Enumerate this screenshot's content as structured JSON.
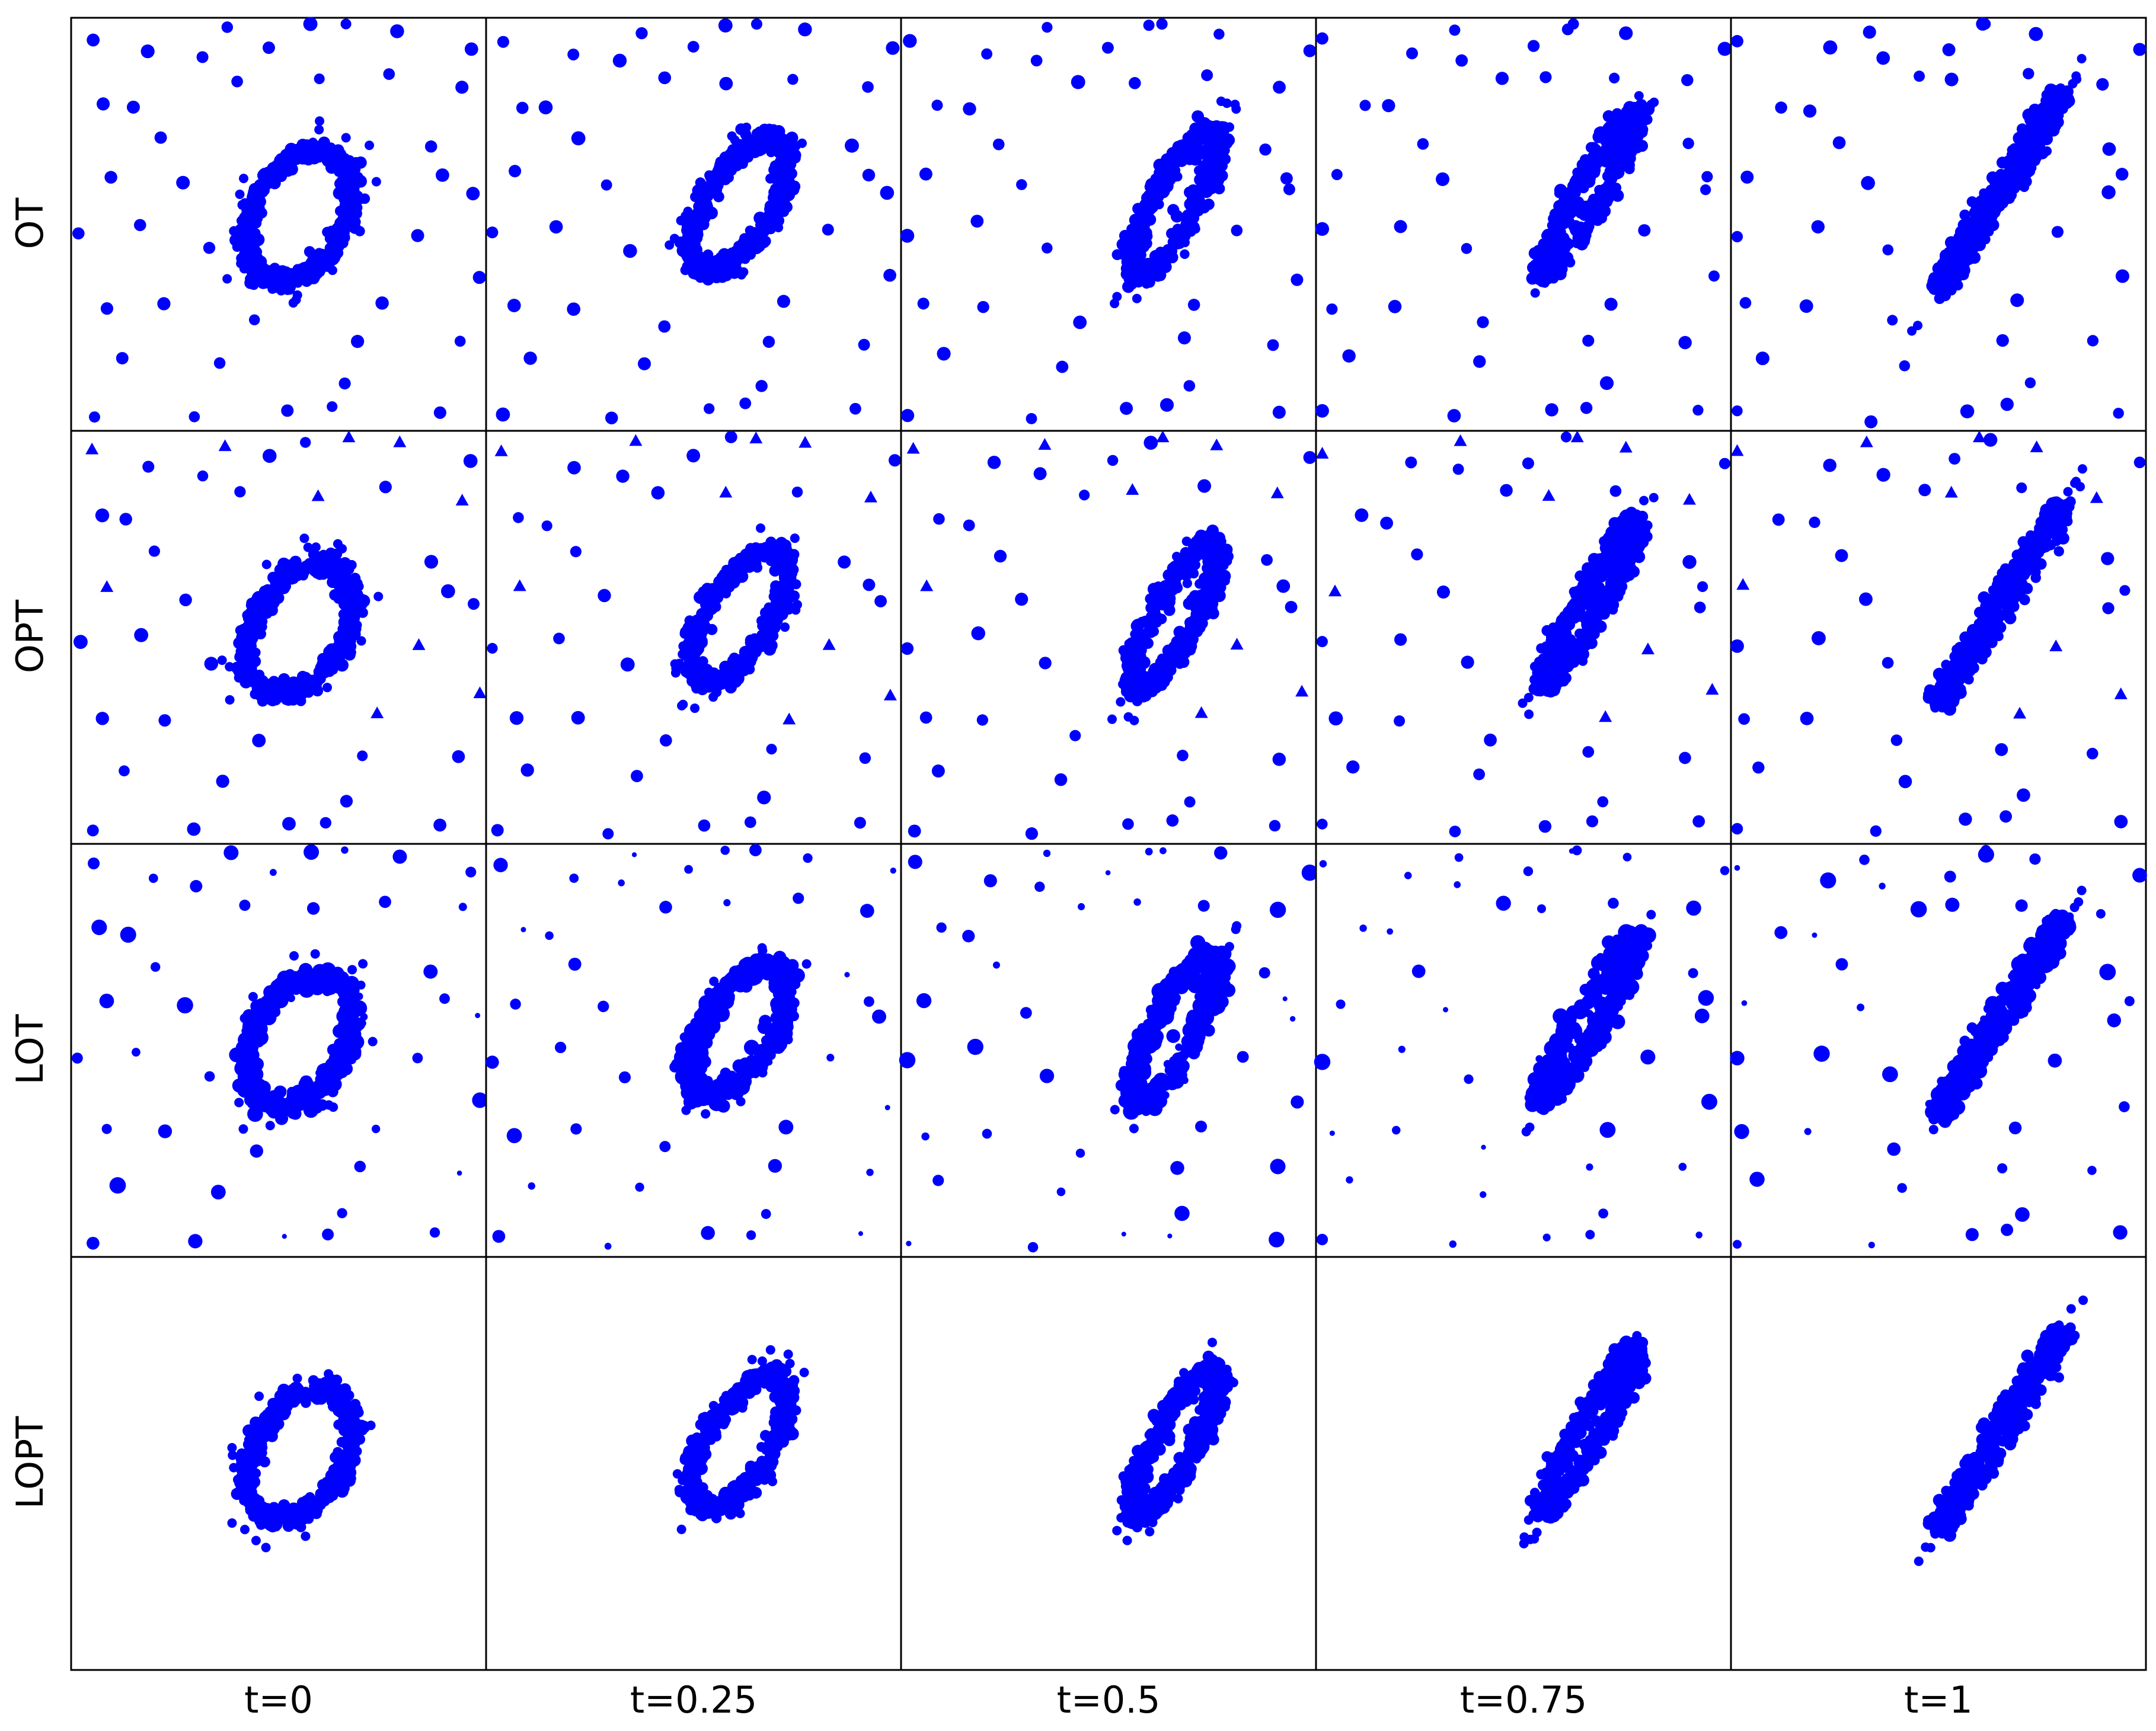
{
  "chart_data": {
    "type": "scatter",
    "layout": "grid",
    "rows": [
      "OT",
      "OPT",
      "LOT",
      "LOPT"
    ],
    "cols": [
      "t=0",
      "t=0.25",
      "t=0.5",
      "t=0.75",
      "t=1"
    ],
    "xlim": [
      0,
      1
    ],
    "ylim": [
      0,
      1
    ],
    "axes_visible": false,
    "grid": false,
    "marker_color": "#0000ff",
    "marker_shapes": [
      "circle",
      "triangle"
    ],
    "ellipse": {
      "description": "dense ring of points forming the main shape",
      "centers": [
        [
          0.55,
          0.52
        ],
        [
          0.61,
          0.55
        ],
        [
          0.66,
          0.55
        ],
        [
          0.66,
          0.58
        ],
        [
          0.65,
          0.58
        ]
      ],
      "semi_major": [
        0.17,
        0.18,
        0.2,
        0.22,
        0.27
      ],
      "semi_minor": [
        0.11,
        0.08,
        0.05,
        0.03,
        0.015
      ],
      "angle_deg": [
        60,
        58,
        62,
        60,
        58
      ]
    },
    "outliers": [
      {
        "x": 0.05,
        "y": 0.95
      },
      {
        "x": 0.14,
        "y": 0.78
      },
      {
        "x": 0.23,
        "y": 0.3
      },
      {
        "x": 0.31,
        "y": 0.9
      },
      {
        "x": 0.09,
        "y": 0.62
      },
      {
        "x": 0.97,
        "y": 0.93
      },
      {
        "x": 0.93,
        "y": 0.21
      },
      {
        "x": 0.66,
        "y": 0.11
      },
      {
        "x": 0.79,
        "y": 0.97
      },
      {
        "x": 0.86,
        "y": 0.69
      },
      {
        "x": 0.05,
        "y": 0.04
      },
      {
        "x": 0.48,
        "y": 0.93
      },
      {
        "x": 0.74,
        "y": 0.31
      },
      {
        "x": 0.19,
        "y": 0.92
      },
      {
        "x": 0.08,
        "y": 0.3
      },
      {
        "x": 0.29,
        "y": 0.03
      },
      {
        "x": 0.94,
        "y": 0.84
      },
      {
        "x": 0.36,
        "y": 0.16
      },
      {
        "x": 0.02,
        "y": 0.48
      },
      {
        "x": 0.62,
        "y": 0.06
      },
      {
        "x": 0.84,
        "y": 0.48
      },
      {
        "x": 0.41,
        "y": 0.85
      },
      {
        "x": 0.97,
        "y": 0.58
      },
      {
        "x": 0.27,
        "y": 0.6
      },
      {
        "x": 0.66,
        "y": 0.99
      },
      {
        "x": 0.52,
        "y": 0.05
      },
      {
        "x": 0.12,
        "y": 0.18
      },
      {
        "x": 0.88,
        "y": 0.05
      },
      {
        "x": 0.59,
        "y": 0.85
      },
      {
        "x": 0.33,
        "y": 0.44
      },
      {
        "x": 0.76,
        "y": 0.86
      },
      {
        "x": 0.21,
        "y": 0.7
      },
      {
        "x": 0.99,
        "y": 0.37
      },
      {
        "x": 0.07,
        "y": 0.79
      },
      {
        "x": 0.45,
        "y": 0.26
      },
      {
        "x": 0.9,
        "y": 0.62
      },
      {
        "x": 0.38,
        "y": 0.97
      },
      {
        "x": 0.16,
        "y": 0.5
      },
      {
        "x": 0.7,
        "y": 0.22
      },
      {
        "x": 0.57,
        "y": 0.98
      }
    ]
  }
}
